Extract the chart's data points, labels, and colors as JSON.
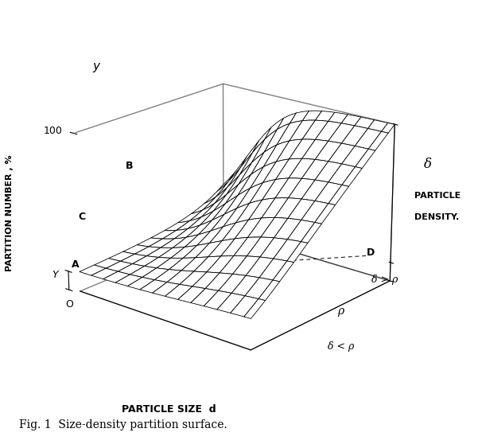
{
  "caption": "Fig. 1  Size-density partition surface.",
  "ylabel": "PARTITION NUMBER , %",
  "xlabel": "PARTICLE SIZE  d",
  "background_color": "white",
  "elev": 20,
  "azim": -50,
  "Y_min": 0.12,
  "surface_facecolor": "white",
  "edge_color": "black",
  "edge_linewidth": 0.6,
  "rstride": 2,
  "cstride": 2,
  "nx": 28,
  "ny": 22
}
